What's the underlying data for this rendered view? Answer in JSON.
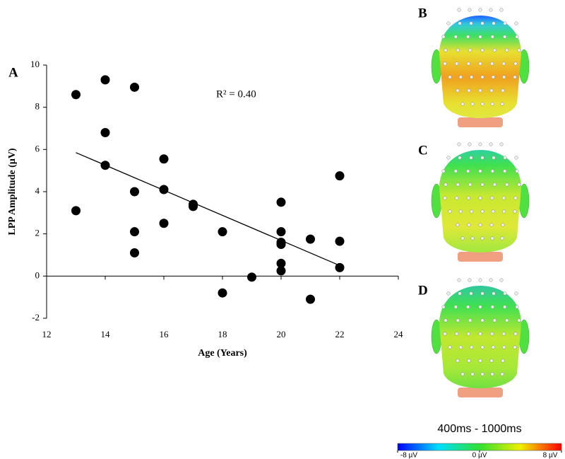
{
  "chart_data": {
    "type": "scatter",
    "xlabel": "Age (Years)",
    "ylabel": "LPP Amplitude (µV)",
    "annotation": "R² = 0.40",
    "panel_labels": [
      "A",
      "B",
      "C",
      "D"
    ],
    "xlim": [
      12,
      24
    ],
    "xticks": [
      12,
      14,
      16,
      18,
      20,
      22,
      24
    ],
    "ylim": [
      -2,
      10
    ],
    "yticks": [
      -2,
      0,
      2,
      4,
      6,
      8,
      10
    ],
    "series": [
      {
        "color": "#000000",
        "x": [
          13,
          13,
          14,
          14,
          14,
          15,
          15,
          15,
          15,
          16,
          16,
          16,
          17,
          17,
          18,
          18,
          19,
          20,
          20,
          20,
          20,
          20,
          20,
          21,
          21,
          22,
          22,
          22
        ],
        "values": [
          8.6,
          3.1,
          9.3,
          6.8,
          5.25,
          8.95,
          4.0,
          2.1,
          1.1,
          5.55,
          4.1,
          2.5,
          3.4,
          3.3,
          2.1,
          -0.8,
          -0.05,
          3.5,
          2.1,
          1.6,
          1.5,
          0.6,
          0.25,
          1.75,
          -1.1,
          4.75,
          1.65,
          0.4
        ]
      }
    ],
    "trendline": {
      "color": "#000000",
      "x": [
        13,
        22
      ],
      "values": [
        5.85,
        0.5
      ]
    },
    "colorbar": {
      "title": "400ms - 1000ms",
      "clim": [
        -8,
        8
      ],
      "ticks": [
        {
          "value": -8,
          "label": "-8 µV"
        },
        {
          "value": 0,
          "label": "0 µV"
        },
        {
          "value": 8,
          "label": "8 µV"
        }
      ]
    }
  }
}
